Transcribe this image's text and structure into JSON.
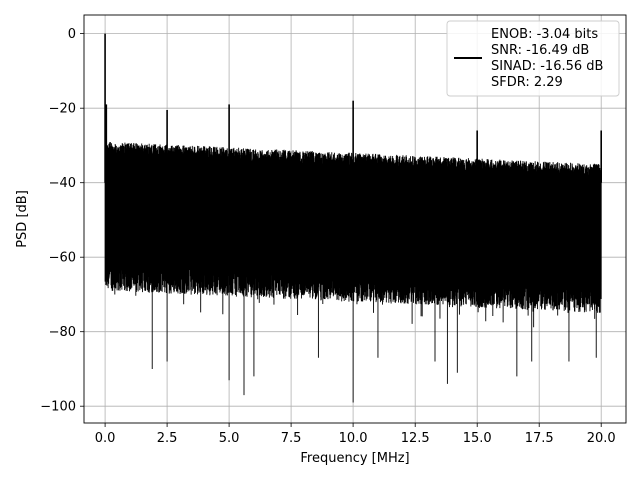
{
  "chart_data": {
    "type": "line",
    "title": "",
    "xlabel": "Frequency [MHz]",
    "ylabel": "PSD [dB]",
    "xlim": [
      -0.85,
      21.0
    ],
    "ylim": [
      -104.5,
      5
    ],
    "grid": true,
    "legend_position": "top-right",
    "x_ticks": [
      0.0,
      2.5,
      5.0,
      7.5,
      10.0,
      12.5,
      15.0,
      17.5,
      20.0
    ],
    "x_tick_labels": [
      "0.0",
      "2.5",
      "5.0",
      "7.5",
      "10.0",
      "12.5",
      "15.0",
      "17.5",
      "20.0"
    ],
    "y_ticks": [
      0,
      -20,
      -40,
      -60,
      -80,
      -100
    ],
    "y_tick_labels": [
      "0",
      "−20",
      "−40",
      "−60",
      "−80",
      "−100"
    ],
    "series": [
      {
        "color": "#000000",
        "legend_lines": [
          "ENOB: -3.04 bits",
          "SNR: -16.49 dB",
          "SINAD: -16.56 dB",
          "SFDR: 2.29"
        ],
        "noise_floor_upper_db": [
          -29,
          -35
        ],
        "noise_floor_lower_db": [
          -69,
          -75
        ],
        "peaks": [
          {
            "x": 0.0,
            "y": 0
          },
          {
            "x": 0.05,
            "y": -19
          },
          {
            "x": 2.5,
            "y": -20.5
          },
          {
            "x": 5.0,
            "y": -19
          },
          {
            "x": 10.0,
            "y": -18
          },
          {
            "x": 15.0,
            "y": -26
          },
          {
            "x": 20.0,
            "y": -26
          }
        ],
        "dips": [
          {
            "x": 1.9,
            "y": -90
          },
          {
            "x": 2.5,
            "y": -88
          },
          {
            "x": 5.0,
            "y": -93
          },
          {
            "x": 5.6,
            "y": -97
          },
          {
            "x": 6.0,
            "y": -92
          },
          {
            "x": 8.6,
            "y": -87
          },
          {
            "x": 10.0,
            "y": -99
          },
          {
            "x": 11.0,
            "y": -87
          },
          {
            "x": 13.3,
            "y": -88
          },
          {
            "x": 13.8,
            "y": -94
          },
          {
            "x": 14.2,
            "y": -91
          },
          {
            "x": 16.6,
            "y": -92
          },
          {
            "x": 17.2,
            "y": -88
          },
          {
            "x": 18.7,
            "y": -88
          },
          {
            "x": 19.8,
            "y": -87
          }
        ]
      }
    ]
  }
}
